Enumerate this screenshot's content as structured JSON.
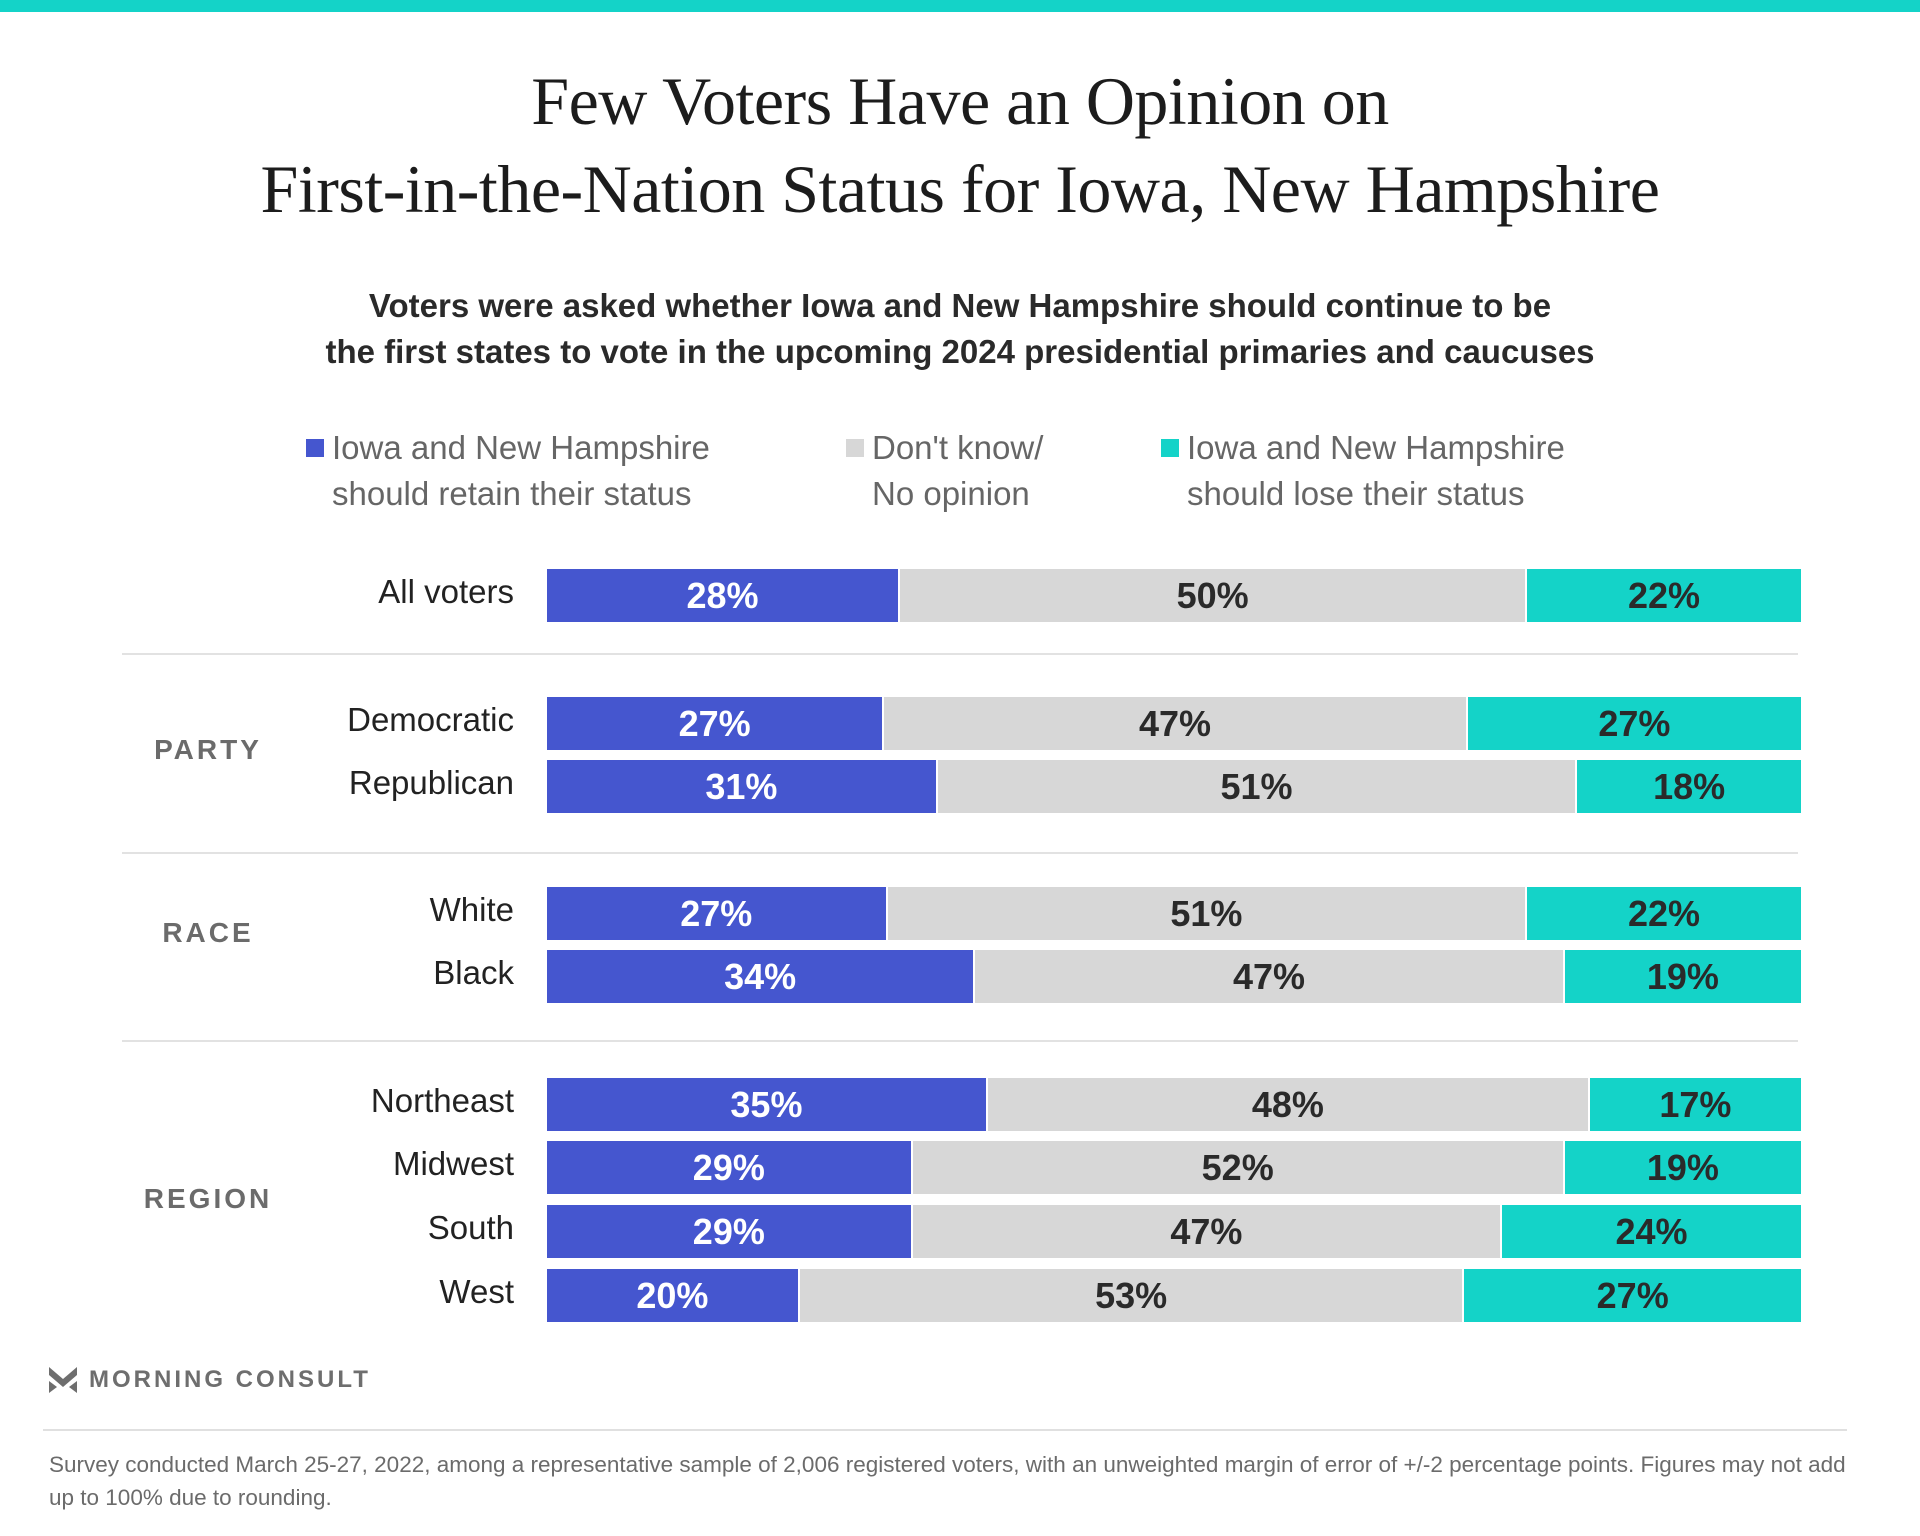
{
  "colors": {
    "retain": "#4556cf",
    "dont_know": "#d7d7d7",
    "lose": "#14d3c8",
    "top_bar": "#14d3c8"
  },
  "title": [
    "Few Voters Have an Opinion on",
    "First-in-the-Nation Status for Iowa, New Hampshire"
  ],
  "subtitle": [
    "Voters were asked whether Iowa and New Hampshire should continue to be",
    "the first states to vote in the upcoming 2024 presidential primaries and caucuses"
  ],
  "legend": [
    {
      "line1": "Iowa and New Hampshire",
      "line2": "should retain their status"
    },
    {
      "line1": "Don't know/",
      "line2": "No opinion"
    },
    {
      "line1": "Iowa and New Hampshire",
      "line2": "should lose their status"
    }
  ],
  "chart_data": {
    "type": "bar",
    "orientation": "horizontal-stacked-100",
    "title": "Few Voters Have an Opinion on First-in-the-Nation Status for Iowa, New Hampshire",
    "series_names": [
      "Iowa and New Hampshire should retain their status",
      "Don't know/ No opinion",
      "Iowa and New Hampshire should lose their status"
    ],
    "groups": [
      {
        "label": "",
        "rows": [
          {
            "category": "All voters",
            "values": [
              28,
              50,
              22
            ]
          }
        ]
      },
      {
        "label": "PARTY",
        "rows": [
          {
            "category": "Democratic",
            "values": [
              27,
              47,
              27
            ]
          },
          {
            "category": "Republican",
            "values": [
              31,
              51,
              18
            ]
          }
        ]
      },
      {
        "label": "RACE",
        "rows": [
          {
            "category": "White",
            "values": [
              27,
              51,
              22
            ]
          },
          {
            "category": "Black",
            "values": [
              34,
              47,
              19
            ]
          }
        ]
      },
      {
        "label": "REGION",
        "rows": [
          {
            "category": "Northeast",
            "values": [
              35,
              48,
              17
            ]
          },
          {
            "category": "Midwest",
            "values": [
              29,
              52,
              19
            ]
          },
          {
            "category": "South",
            "values": [
              29,
              47,
              24
            ]
          },
          {
            "category": "West",
            "values": [
              20,
              53,
              27
            ]
          }
        ]
      }
    ],
    "unit": "%"
  },
  "brand": "MORNING CONSULT",
  "footer": "Survey conducted March 25-27, 2022, among a representative sample of 2,006 registered voters, with an unweighted margin of error of +/-2 percentage points. Figures may not add up to 100% due to rounding."
}
